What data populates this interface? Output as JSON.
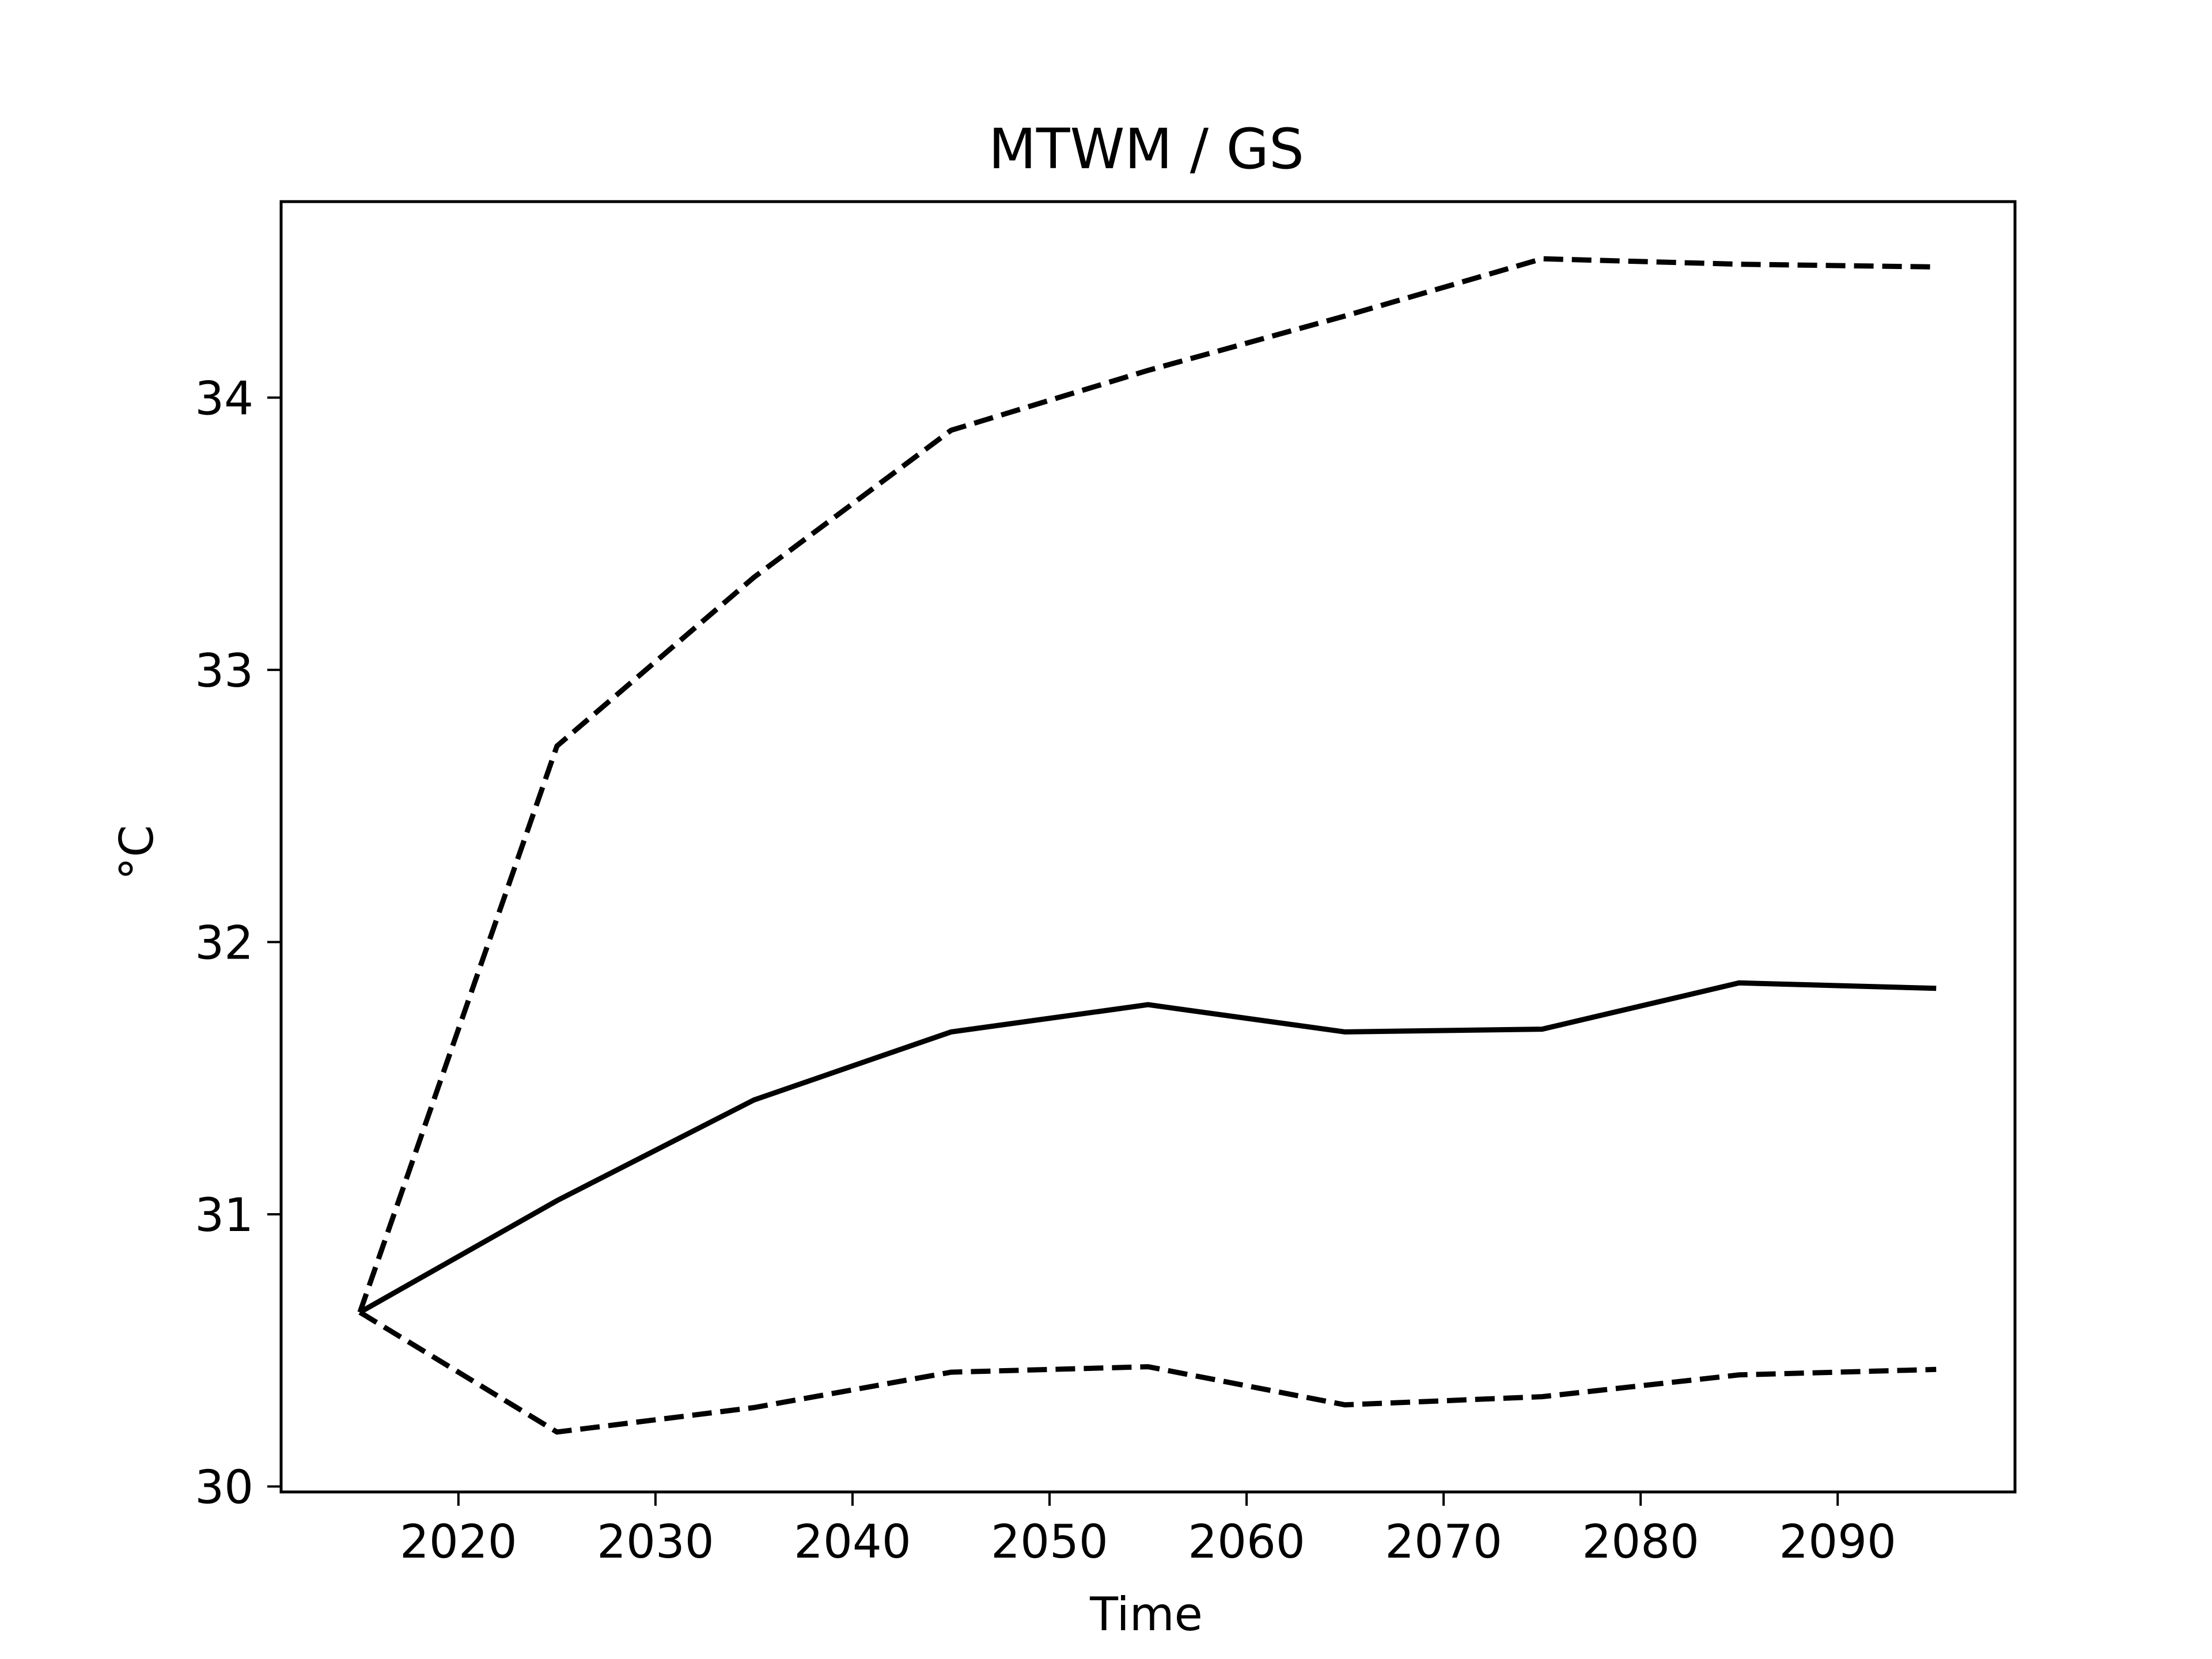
{
  "chart_data": {
    "type": "line",
    "title": "MTWM / GS",
    "xlabel": "Time",
    "ylabel": "°C",
    "x": [
      2015,
      2025,
      2035,
      2045,
      2055,
      2065,
      2075,
      2085,
      2095
    ],
    "xlim": [
      2011,
      2099
    ],
    "ylim": [
      29.98,
      34.72
    ],
    "xticks": [
      2020,
      2030,
      2040,
      2050,
      2060,
      2070,
      2080,
      2090
    ],
    "yticks": [
      30,
      31,
      32,
      33,
      34
    ],
    "grid": false,
    "legend": false,
    "series": [
      {
        "style": "solid",
        "color": "#000000",
        "values": [
          30.64,
          31.05,
          31.42,
          31.67,
          31.77,
          31.67,
          31.68,
          31.85,
          31.83
        ]
      },
      {
        "style": "dashed",
        "color": "#000000",
        "values": [
          30.64,
          32.72,
          33.34,
          33.88,
          34.1,
          34.3,
          34.51,
          34.49,
          34.48
        ]
      },
      {
        "style": "dashed",
        "color": "#000000",
        "values": [
          30.64,
          30.2,
          30.29,
          30.42,
          30.44,
          30.3,
          30.33,
          30.41,
          30.43
        ]
      }
    ]
  }
}
